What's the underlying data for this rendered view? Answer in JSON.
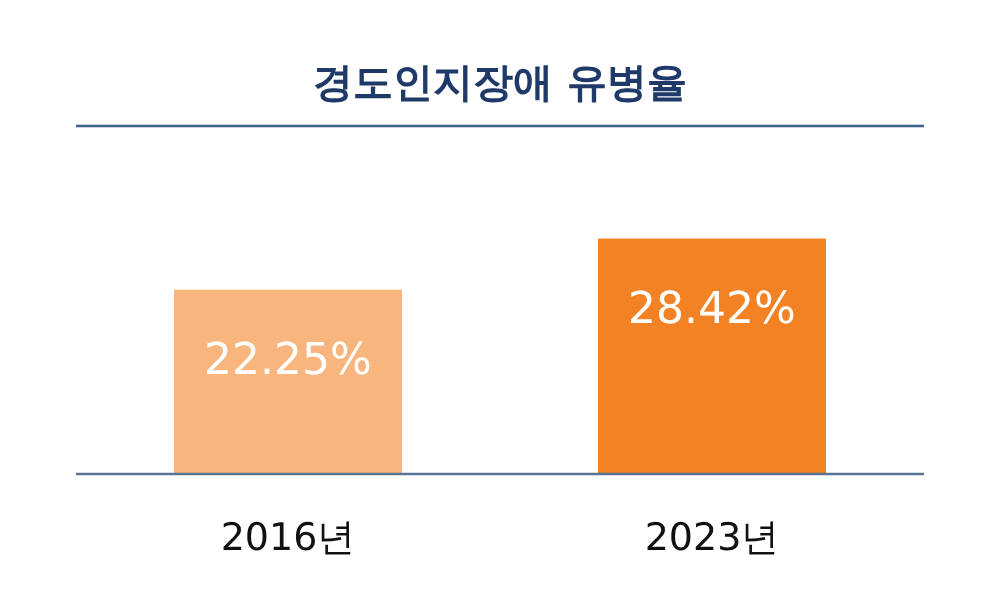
{
  "chart_data": {
    "type": "bar",
    "title": "경도인지장애 유병율",
    "categories": [
      "2016년",
      "2023년"
    ],
    "values": [
      22.25,
      28.42
    ],
    "colors": [
      "#f8b57d",
      "#f28224"
    ],
    "value_labels": [
      "22.25%",
      "28.42%"
    ],
    "ylim": [
      0,
      42
    ]
  }
}
